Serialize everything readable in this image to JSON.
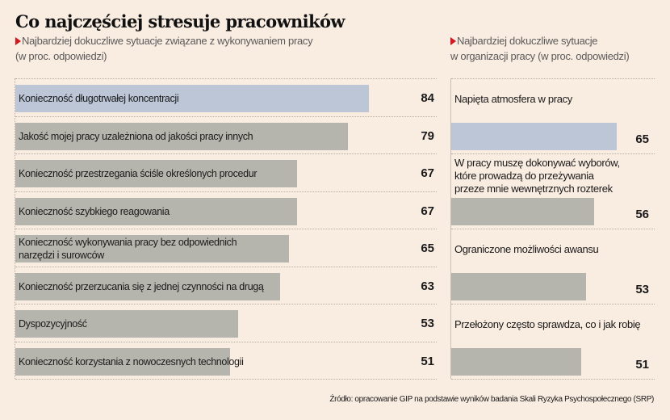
{
  "title": "Co najczęściej stresuje pracowników",
  "subtitle_left": {
    "line1": "Najbardziej dokuczliwe sytuacje związane z wykonywaniem pracy",
    "line2": "(w proc. odpowiedzi)"
  },
  "subtitle_right": {
    "line1": "Najbardziej dokuczliwe sytuacje",
    "line2": "w organizacji pracy (w proc. odpowiedzi)"
  },
  "source": "Źródło: opracowanie GIP na podstawie wyników badania Skali Ryzyka Psychospołecznego (SRP)",
  "colors": {
    "background": "#f9ece1",
    "bar": "#b6b5ad",
    "bar_highlight": "#bcc6d7",
    "accent_triangle": "#d9141c"
  },
  "chart_data": [
    {
      "type": "bar",
      "orientation": "horizontal",
      "title": "Najbardziej dokuczliwe sytuacje związane z wykonywaniem pracy (w proc. odpowiedzi)",
      "xlabel": "",
      "ylabel": "",
      "unit": "%",
      "xlim": [
        0,
        100
      ],
      "grid": false,
      "categories": [
        "Konieczność długotrwałej koncentracji",
        "Jakość mojej pracy uzależniona od jakości pracy innych",
        "Konieczność przestrzegania ściśle określonych procedur",
        "Konieczność szybkiego reagowania",
        "Konieczność wykonywania pracy bez odpowiednich\nnarzędzi i surowców",
        "Konieczność przerzucania się z jednej czynności na drugą",
        "Dyspozycyjność",
        "Konieczność korzystania z nowoczesnych  technologii"
      ],
      "values": [
        84,
        79,
        67,
        67,
        65,
        63,
        53,
        51
      ],
      "highlight_index": 0
    },
    {
      "type": "bar",
      "orientation": "horizontal",
      "title": "Najbardziej dokuczliwe sytuacje w organizacji pracy (w proc. odpowiedzi)",
      "xlabel": "",
      "ylabel": "",
      "unit": "%",
      "xlim": [
        0,
        80
      ],
      "grid": false,
      "categories": [
        "Napięta atmosfera w pracy",
        "W pracy muszę dokonywać wyborów,\nktóre prowadzą do przeżywania\nprzeze mnie wewnętrznych rozterek",
        "Ograniczone możliwości awansu",
        "Przełożony często sprawdza, co i jak robię"
      ],
      "values": [
        65,
        56,
        53,
        51
      ],
      "highlight_index": 0
    }
  ]
}
